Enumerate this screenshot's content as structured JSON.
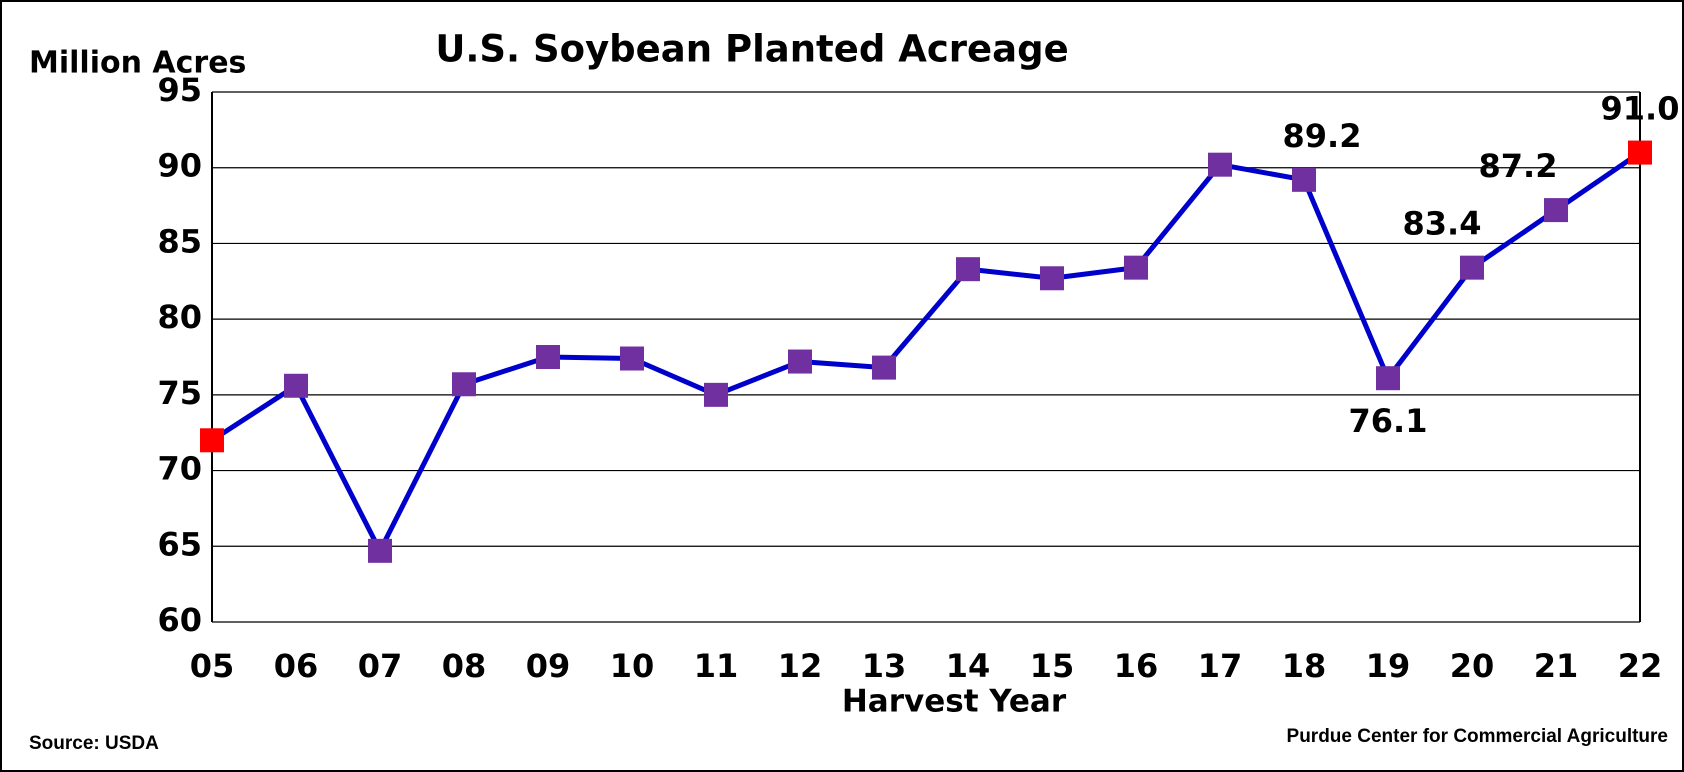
{
  "chart_data": {
    "type": "line",
    "title": "U.S. Soybean Planted Acreage",
    "y_label": "Million Acres",
    "x_label": "Harvest Year",
    "source": "Source: USDA",
    "credit": "Purdue Center for Commercial Agriculture",
    "categories": [
      "05",
      "06",
      "07",
      "08",
      "09",
      "10",
      "11",
      "12",
      "13",
      "14",
      "15",
      "16",
      "17",
      "18",
      "19",
      "20",
      "21",
      "22"
    ],
    "series": [
      {
        "name": "Planted Acreage",
        "color": "#0000cc",
        "marker_colors": [
          "#ff0000",
          "#7030a0",
          "#7030a0",
          "#7030a0",
          "#7030a0",
          "#7030a0",
          "#7030a0",
          "#7030a0",
          "#7030a0",
          "#7030a0",
          "#7030a0",
          "#7030a0",
          "#7030a0",
          "#7030a0",
          "#7030a0",
          "#7030a0",
          "#7030a0",
          "#ff0000"
        ],
        "values": [
          72.0,
          75.6,
          64.7,
          75.7,
          77.5,
          77.4,
          75.0,
          77.2,
          76.8,
          83.3,
          82.7,
          83.4,
          90.2,
          89.2,
          76.1,
          83.4,
          87.2,
          91.0
        ],
        "value_labels": [
          null,
          null,
          null,
          null,
          null,
          null,
          null,
          null,
          null,
          null,
          null,
          null,
          null,
          "89.2",
          "76.1",
          "83.4",
          "87.2",
          "91.0"
        ]
      }
    ],
    "ylim": [
      60,
      95
    ],
    "yticks": [
      60,
      65,
      70,
      75,
      80,
      85,
      90,
      95
    ],
    "grid": true
  }
}
